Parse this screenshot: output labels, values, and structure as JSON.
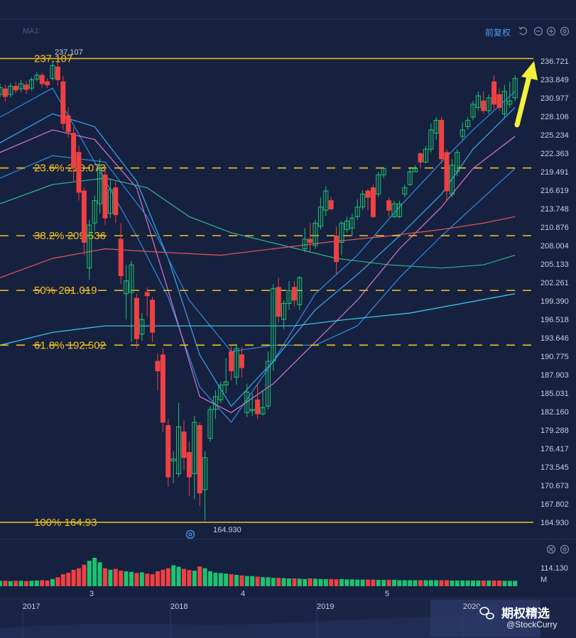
{
  "header": {
    "ma_label": "MA1:",
    "adjust_label": "前复权"
  },
  "watermark": {
    "line1": "期权精选",
    "line2": "@StockCurry"
  },
  "colors": {
    "background": "#16213f",
    "up": "#1ec271",
    "down": "#ef4043",
    "fib": "#f4c21c",
    "arrow": "#f2f23a",
    "ma_blue": "#2f8be0",
    "ma_sky": "#3aa8f0",
    "ma_pink": "#d873d6",
    "ma_green": "#2fb58d",
    "ma_red": "#e2565e",
    "ma_cyan": "#38d3f0"
  },
  "icons": [
    "reset-icon",
    "zoom-out-icon",
    "zoom-in-icon",
    "settings-icon"
  ],
  "chart_data": {
    "type": "candlestick",
    "price_axis": {
      "min": 164.93,
      "max": 236.721,
      "ticks": [
        "236.721",
        "233.849",
        "230.977",
        "228.106",
        "225.234",
        "222.363",
        "219.491",
        "216.619",
        "213.748",
        "210.876",
        "208.004",
        "205.133",
        "202.261",
        "199.390",
        "196.518",
        "193.646",
        "190.775",
        "187.903",
        "185.031",
        "182.160",
        "179.288",
        "176.417",
        "173.545",
        "170.673",
        "167.802",
        "164.930"
      ]
    },
    "time_labels": {
      "bottom": [
        "2017",
        "2018",
        "2019",
        "2020"
      ],
      "volume": [
        "3",
        "4",
        "5"
      ]
    },
    "high_label": "237.107",
    "low_label": "164.930",
    "fib_levels": [
      {
        "label": "237.107",
        "price": 237.107,
        "style": "solid"
      },
      {
        "label": "23.6% 220.073",
        "price": 220.073,
        "style": "dashed"
      },
      {
        "label": "38.2% 209.536",
        "price": 209.536,
        "style": "dashed"
      },
      {
        "label": "50% 201.019",
        "price": 201.019,
        "style": "dashed"
      },
      {
        "label": "61.8% 192.502",
        "price": 192.502,
        "style": "dashed"
      },
      {
        "label": "100% 164.93",
        "price": 164.93,
        "style": "solid"
      }
    ],
    "volume_axis": {
      "max_label": "114.130",
      "unit": "M"
    },
    "candles": [
      [
        231.5,
        232.6,
        233.2,
        231.0
      ],
      [
        232.4,
        231.2,
        233.0,
        230.4
      ],
      [
        231.5,
        232.8,
        233.3,
        231.1
      ],
      [
        232.8,
        232.2,
        233.5,
        231.7
      ],
      [
        232.4,
        233.2,
        233.8,
        231.9
      ],
      [
        233.0,
        232.3,
        233.6,
        231.6
      ],
      [
        232.5,
        233.8,
        234.2,
        232.1
      ],
      [
        233.9,
        234.5,
        235.0,
        233.5
      ],
      [
        234.5,
        233.2,
        234.9,
        232.6
      ],
      [
        233.5,
        233.0,
        234.0,
        232.5
      ],
      [
        234.0,
        236.0,
        236.8,
        233.7
      ],
      [
        235.8,
        233.8,
        236.5,
        232.9
      ],
      [
        233.5,
        227.0,
        234.4,
        226.0
      ],
      [
        228.2,
        225.7,
        229.5,
        224.8
      ],
      [
        225.5,
        220.1,
        226.4,
        218.0
      ],
      [
        222.5,
        216.3,
        223.5,
        215.0
      ],
      [
        216.5,
        208.5,
        217.0,
        206.5
      ],
      [
        204.5,
        211.2,
        212.0,
        202.7
      ],
      [
        211.5,
        215.0,
        215.8,
        210.2
      ],
      [
        214.5,
        220.0,
        221.5,
        213.0
      ],
      [
        219.0,
        212.3,
        220.5,
        211.2
      ],
      [
        213.0,
        216.7,
        218.5,
        212.3
      ],
      [
        217.0,
        212.8,
        218.0,
        211.5
      ],
      [
        209.0,
        203.3,
        211.5,
        202.0
      ],
      [
        200.5,
        202.5,
        205.0,
        196.5
      ],
      [
        200.7,
        205.0,
        205.6,
        193.0
      ],
      [
        199.8,
        193.5,
        200.5,
        192.0
      ],
      [
        194.2,
        196.5,
        197.5,
        193.2
      ],
      [
        200.7,
        200.2,
        201.5,
        197.0
      ],
      [
        199.5,
        194.5,
        200.0,
        193.0
      ],
      [
        190.0,
        188.5,
        191.2,
        185.5
      ],
      [
        191.0,
        180.5,
        192.0,
        179.0
      ],
      [
        180.0,
        172.0,
        181.0,
        170.5
      ],
      [
        174.5,
        174.8,
        176.0,
        171.0
      ],
      [
        172.5,
        179.8,
        183.5,
        172.0
      ],
      [
        179.0,
        175.0,
        180.8,
        173.0
      ],
      [
        175.8,
        172.0,
        177.5,
        169.0
      ],
      [
        172.5,
        180.5,
        181.5,
        168.5
      ],
      [
        180.0,
        169.5,
        180.5,
        167.5
      ],
      [
        170.0,
        175.0,
        176.0,
        165.2
      ],
      [
        178.0,
        182.5,
        183.0,
        177.5
      ],
      [
        182.5,
        184.5,
        185.5,
        181.0
      ],
      [
        184.0,
        186.3,
        186.8,
        183.5
      ],
      [
        186.3,
        186.8,
        190.5,
        185.0
      ],
      [
        191.5,
        188.5,
        192.5,
        187.0
      ],
      [
        187.5,
        192.0,
        192.5,
        186.3
      ],
      [
        191.0,
        189.0,
        192.3,
        187.5
      ],
      [
        182.0,
        185.2,
        186.5,
        181.3
      ],
      [
        182.3,
        182.5,
        185.0,
        181.5
      ],
      [
        184.0,
        181.8,
        186.5,
        181.0
      ],
      [
        181.8,
        182.8,
        185.5,
        181.6
      ],
      [
        183.0,
        190.0,
        191.5,
        182.5
      ],
      [
        190.0,
        201.3,
        202.0,
        188.5
      ],
      [
        201.5,
        197.0,
        203.0,
        196.0
      ],
      [
        196.5,
        199.0,
        199.5,
        195.0
      ],
      [
        199.0,
        201.0,
        202.5,
        198.0
      ],
      [
        201.5,
        199.5,
        202.5,
        198.5
      ],
      [
        198.8,
        203.0,
        203.3,
        198.0
      ],
      [
        207.5,
        209.0,
        210.7,
        207.0
      ],
      [
        209.0,
        208.5,
        211.5,
        207.0
      ],
      [
        208.0,
        211.5,
        212.0,
        207.5
      ],
      [
        211.0,
        214.0,
        215.5,
        210.5
      ],
      [
        213.5,
        216.5,
        217.2,
        212.6
      ],
      [
        215.0,
        213.7,
        215.6,
        213.5
      ],
      [
        209.5,
        205.5,
        211.0,
        203.5
      ],
      [
        208.5,
        211.5,
        211.8,
        206.5
      ],
      [
        210.5,
        211.8,
        212.5,
        210.0
      ],
      [
        210.7,
        212.3,
        212.9,
        209.5
      ],
      [
        212.5,
        214.0,
        215.2,
        212.0
      ],
      [
        214.0,
        216.0,
        216.6,
        213.5
      ],
      [
        216.5,
        215.5,
        216.8,
        213.5
      ],
      [
        217.0,
        212.5,
        217.5,
        212.3
      ],
      [
        216.0,
        219.0,
        219.5,
        215.5
      ],
      [
        219.0,
        220.0,
        220.2,
        218.5
      ],
      [
        215.0,
        213.5,
        215.5,
        212.5
      ],
      [
        212.5,
        214.5,
        215.0,
        212.3
      ],
      [
        212.5,
        214.5,
        215.0,
        212.3
      ],
      [
        216.0,
        217.0,
        217.5,
        215.5
      ],
      [
        217.5,
        219.5,
        220.0,
        217.3
      ],
      [
        219.5,
        220.0,
        220.5,
        219.5
      ],
      [
        222.3,
        221.0,
        222.5,
        220.0
      ],
      [
        221.0,
        223.0,
        223.5,
        220.8
      ],
      [
        223.0,
        226.0,
        227.0,
        222.5
      ],
      [
        225.5,
        227.5,
        228.0,
        224.5
      ],
      [
        227.5,
        221.5,
        228.0,
        220.7
      ],
      [
        222.5,
        216.5,
        223.0,
        215.0
      ],
      [
        216.0,
        220.5,
        221.5,
        215.5
      ],
      [
        219.5,
        222.5,
        223.0,
        218.8
      ],
      [
        225.0,
        226.0,
        227.2,
        224.5
      ],
      [
        226.5,
        227.5,
        228.0,
        226.0
      ],
      [
        228.0,
        230.0,
        230.5,
        227.5
      ],
      [
        229.5,
        231.3,
        232.0,
        229.0
      ],
      [
        230.5,
        229.0,
        232.0,
        228.5
      ],
      [
        229.0,
        231.0,
        231.5,
        228.5
      ],
      [
        233.5,
        230.0,
        234.5,
        229.0
      ],
      [
        231.5,
        229.5,
        232.5,
        229.0
      ],
      [
        228.5,
        232.0,
        233.0,
        228.0
      ],
      [
        230.0,
        230.5,
        233.5,
        229.5
      ],
      [
        231.0,
        234.0,
        234.5,
        230.5
      ]
    ],
    "moving_averages": [
      {
        "color": "#2f8be0",
        "values": [
          [
            0,
            228.0
          ],
          [
            10,
            232.5
          ],
          [
            18,
            221.0
          ],
          [
            26,
            209.5
          ],
          [
            32,
            200.0
          ],
          [
            38,
            186.0
          ],
          [
            44,
            180.5
          ],
          [
            52,
            190.0
          ],
          [
            60,
            200.5
          ],
          [
            68,
            206.5
          ],
          [
            76,
            214.0
          ],
          [
            84,
            221.0
          ],
          [
            90,
            226.0
          ],
          [
            98,
            232.0
          ]
        ]
      },
      {
        "color": "#3aa8f0",
        "values": [
          [
            0,
            224.0
          ],
          [
            10,
            228.5
          ],
          [
            18,
            226.5
          ],
          [
            26,
            218.0
          ],
          [
            32,
            206.0
          ],
          [
            38,
            191.0
          ],
          [
            44,
            183.0
          ],
          [
            52,
            190.0
          ],
          [
            60,
            198.0
          ],
          [
            68,
            203.5
          ],
          [
            76,
            209.5
          ],
          [
            84,
            216.0
          ],
          [
            90,
            223.0
          ],
          [
            98,
            229.5
          ]
        ]
      },
      {
        "color": "#d873d6",
        "values": [
          [
            0,
            222.5
          ],
          [
            10,
            226.0
          ],
          [
            18,
            224.5
          ],
          [
            26,
            217.0
          ],
          [
            32,
            201.0
          ],
          [
            38,
            184.5
          ],
          [
            44,
            182.0
          ],
          [
            52,
            186.5
          ],
          [
            60,
            193.0
          ],
          [
            68,
            199.5
          ],
          [
            76,
            207.5
          ],
          [
            84,
            214.0
          ],
          [
            90,
            220.0
          ],
          [
            98,
            225.0
          ]
        ]
      },
      {
        "color": "#2f8be0",
        "values": [
          [
            0,
            218.5
          ],
          [
            10,
            222.0
          ],
          [
            20,
            221.0
          ],
          [
            28,
            212.5
          ],
          [
            36,
            199.5
          ],
          [
            44,
            191.5
          ],
          [
            52,
            192.5
          ],
          [
            60,
            192.5
          ],
          [
            68,
            195.5
          ],
          [
            76,
            203.0
          ],
          [
            84,
            209.5
          ],
          [
            92,
            215.5
          ],
          [
            98,
            220.0
          ]
        ]
      },
      {
        "color": "#2fb58d",
        "values": [
          [
            0,
            214.5
          ],
          [
            10,
            217.5
          ],
          [
            20,
            218.5
          ],
          [
            28,
            217.0
          ],
          [
            36,
            212.5
          ],
          [
            44,
            210.0
          ],
          [
            54,
            208.0
          ],
          [
            64,
            206.0
          ],
          [
            74,
            205.0
          ],
          [
            84,
            204.5
          ],
          [
            92,
            205.0
          ],
          [
            98,
            206.5
          ]
        ]
      },
      {
        "color": "#e2565e",
        "values": [
          [
            0,
            203.0
          ],
          [
            10,
            206.0
          ],
          [
            20,
            207.5
          ],
          [
            30,
            207.0
          ],
          [
            42,
            206.5
          ],
          [
            52,
            207.5
          ],
          [
            62,
            208.5
          ],
          [
            74,
            209.5
          ],
          [
            84,
            210.5
          ],
          [
            92,
            211.5
          ],
          [
            98,
            212.5
          ]
        ]
      },
      {
        "color": "#38d3f0",
        "values": [
          [
            0,
            192.5
          ],
          [
            10,
            194.5
          ],
          [
            20,
            195.5
          ],
          [
            32,
            195.5
          ],
          [
            44,
            195.5
          ],
          [
            56,
            195.5
          ],
          [
            66,
            196.5
          ],
          [
            78,
            197.5
          ],
          [
            88,
            199.0
          ],
          [
            98,
            200.5
          ]
        ]
      }
    ],
    "volumes": [
      18,
      18,
      17,
      18,
      18,
      17,
      18,
      19,
      20,
      19,
      24,
      30,
      40,
      45,
      55,
      60,
      72,
      85,
      95,
      80,
      60,
      55,
      58,
      52,
      50,
      48,
      44,
      46,
      42,
      40,
      50,
      55,
      60,
      70,
      65,
      58,
      54,
      52,
      66,
      60,
      50,
      45,
      44,
      42,
      40,
      38,
      36,
      34,
      34,
      32,
      30,
      30,
      28,
      28,
      27,
      26,
      26,
      25,
      24,
      26,
      25,
      24,
      24,
      24,
      23,
      24,
      23,
      23,
      22,
      22,
      22,
      22,
      21,
      21,
      21,
      21,
      20,
      20,
      20,
      20,
      20,
      20,
      20,
      20,
      20,
      20,
      19,
      19,
      19,
      19,
      19,
      19,
      19,
      19,
      19,
      19,
      18,
      18,
      18
    ]
  }
}
